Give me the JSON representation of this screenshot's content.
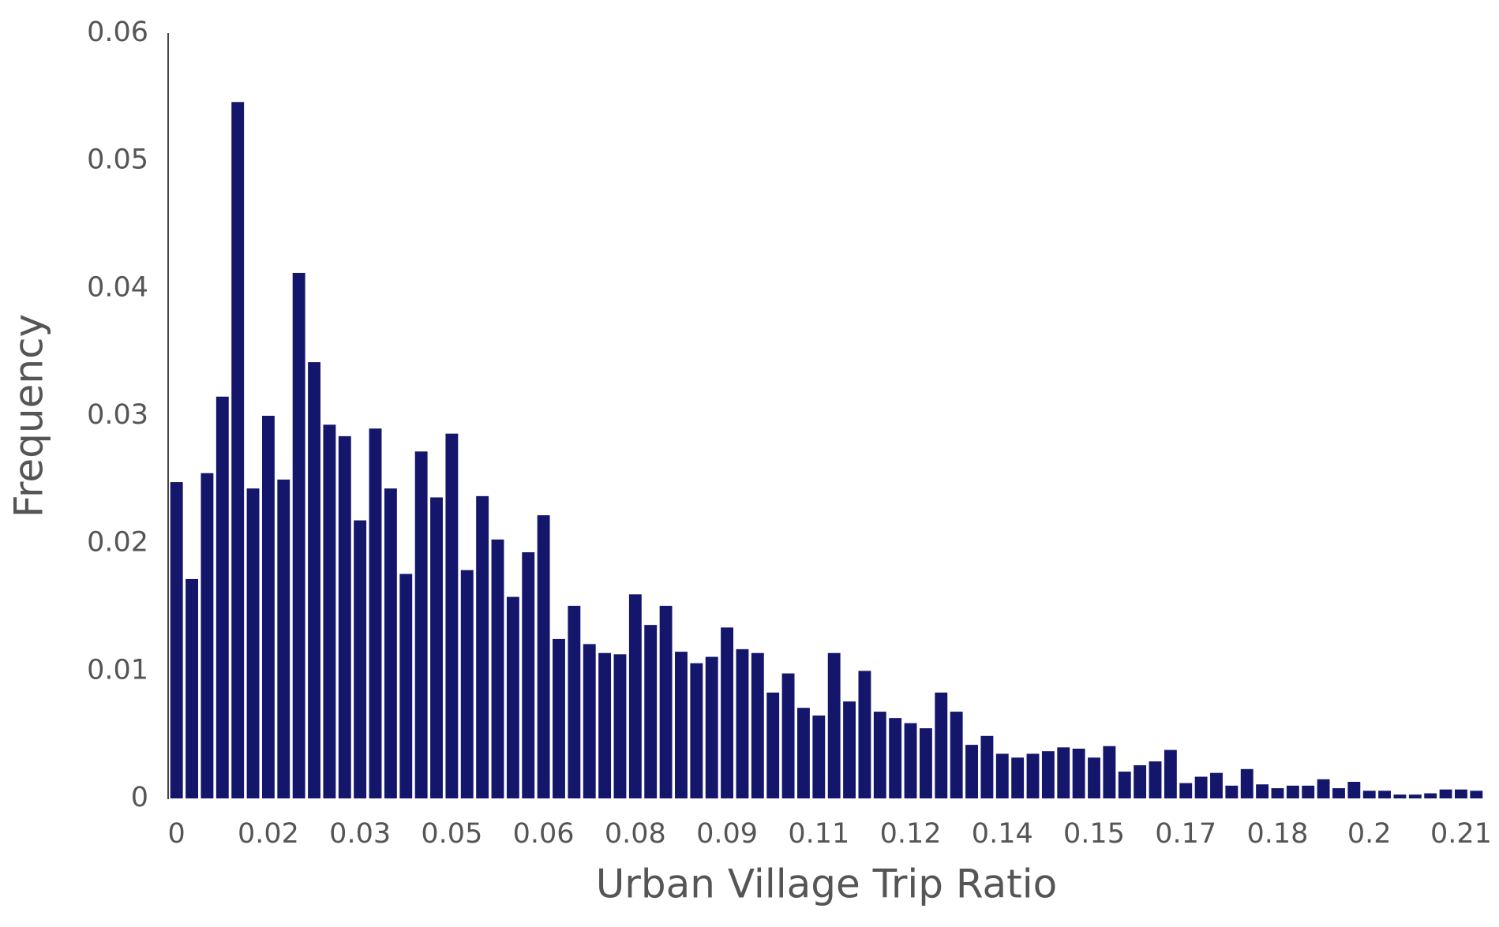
{
  "chart_data": {
    "type": "bar",
    "x_label": "Urban Village Trip Ratio",
    "y_label": "Frequency",
    "categories": [
      "0",
      null,
      null,
      null,
      null,
      null,
      "0.02",
      null,
      null,
      null,
      null,
      null,
      "0.03",
      null,
      null,
      null,
      null,
      null,
      "0.05",
      null,
      null,
      null,
      null,
      null,
      "0.06",
      null,
      null,
      null,
      null,
      null,
      "0.08",
      null,
      null,
      null,
      null,
      null,
      "0.09",
      null,
      null,
      null,
      null,
      null,
      "0.11",
      null,
      null,
      null,
      null,
      null,
      "0.12",
      null,
      null,
      null,
      null,
      null,
      "0.14",
      null,
      null,
      null,
      null,
      null,
      "0.15",
      null,
      null,
      null,
      null,
      null,
      "0.17",
      null,
      null,
      null,
      null,
      null,
      "0.18",
      null,
      null,
      null,
      null,
      null,
      "0.2",
      null,
      null,
      null,
      null,
      null,
      "0.21",
      null
    ],
    "values": [
      0.0248,
      0.0172,
      0.0255,
      0.0315,
      0.0546,
      0.0243,
      0.03,
      0.025,
      0.0412,
      0.0342,
      0.0293,
      0.0284,
      0.0218,
      0.029,
      0.0243,
      0.0176,
      0.0272,
      0.0236,
      0.0286,
      0.0179,
      0.0237,
      0.0203,
      0.0158,
      0.0193,
      0.0222,
      0.0125,
      0.0151,
      0.0121,
      0.0114,
      0.0113,
      0.016,
      0.0136,
      0.0151,
      0.0115,
      0.0106,
      0.0111,
      0.0134,
      0.0117,
      0.0114,
      0.0083,
      0.0098,
      0.0071,
      0.0065,
      0.0114,
      0.0076,
      0.01,
      0.0068,
      0.0063,
      0.0059,
      0.0055,
      0.0083,
      0.0068,
      0.0042,
      0.0049,
      0.0035,
      0.0032,
      0.0035,
      0.0037,
      0.004,
      0.0039,
      0.0032,
      0.0041,
      0.0021,
      0.0026,
      0.0029,
      0.0038,
      0.0012,
      0.0017,
      0.002,
      0.001,
      0.0023,
      0.0011,
      0.0008,
      0.001,
      0.001,
      0.0015,
      0.0008,
      0.0013,
      0.0006,
      0.0006,
      0.0003,
      0.0003,
      0.0004,
      0.0007,
      0.0007,
      0.0006
    ],
    "color": "#14166b",
    "ylim": [
      0,
      0.06
    ],
    "yticks": [
      0,
      0.01,
      0.02,
      0.03,
      0.04,
      0.05,
      0.06
    ],
    "grid": false
  }
}
